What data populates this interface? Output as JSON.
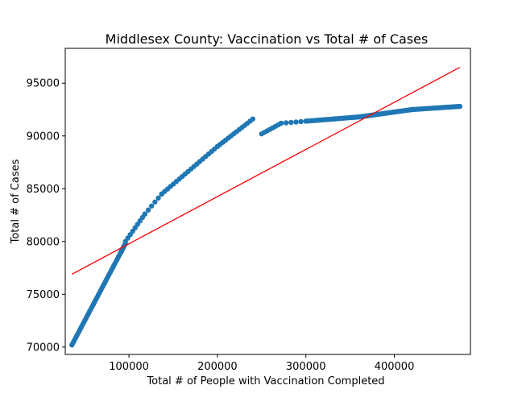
{
  "chart_data": {
    "type": "scatter",
    "title": "Middlesex County: Vaccination vs Total # of Cases",
    "xlabel": "Total # of People with Vaccination Completed",
    "ylabel": "Total # of Cases",
    "xlim": [
      28000,
      486000
    ],
    "ylim": [
      69300,
      98300
    ],
    "xticks": [
      100000,
      200000,
      300000,
      400000
    ],
    "xtick_labels": [
      "100000",
      "200000",
      "300000",
      "400000"
    ],
    "yticks": [
      70000,
      75000,
      80000,
      85000,
      90000,
      95000
    ],
    "ytick_labels": [
      "70000",
      "75000",
      "80000",
      "85000",
      "90000",
      "95000"
    ],
    "grid": false,
    "colors": {
      "points": "#1f77b4",
      "fit_line": "#ff0000"
    },
    "series": [
      {
        "type": "scatter",
        "segments": [
          {
            "x_start": 35500,
            "x_end": 91000,
            "y_start": 70200,
            "y_end": 79000,
            "count": 42
          },
          {
            "x_start": 91000,
            "x_end": 96000,
            "y_start": 79000,
            "y_end": 79800,
            "count": 6
          },
          {
            "x_start": 96000,
            "x_end": 118000,
            "y_start": 80000,
            "y_end": 82600,
            "count": 9
          },
          {
            "x_start": 118000,
            "x_end": 137000,
            "y_start": 82600,
            "y_end": 84500,
            "count": 6
          },
          {
            "x_start": 137000,
            "x_end": 200000,
            "y_start": 84500,
            "y_end": 89000,
            "count": 20
          },
          {
            "x_start": 200000,
            "x_end": 240000,
            "y_start": 89000,
            "y_end": 91600,
            "count": 14
          },
          {
            "x_start": 250000,
            "x_end": 272000,
            "y_start": 90200,
            "y_end": 91200,
            "count": 8
          },
          {
            "x_start": 272000,
            "x_end": 300000,
            "y_start": 91200,
            "y_end": 91400,
            "count": 6
          },
          {
            "x_start": 300000,
            "x_end": 360000,
            "y_start": 91400,
            "y_end": 91800,
            "count": 28
          },
          {
            "x_start": 360000,
            "x_end": 420000,
            "y_start": 91800,
            "y_end": 92500,
            "count": 32
          },
          {
            "x_start": 420000,
            "x_end": 474000,
            "y_start": 92500,
            "y_end": 92800,
            "count": 28
          }
        ]
      },
      {
        "type": "line",
        "x": [
          35500,
          474000
        ],
        "y": [
          76900,
          96500
        ]
      }
    ]
  }
}
